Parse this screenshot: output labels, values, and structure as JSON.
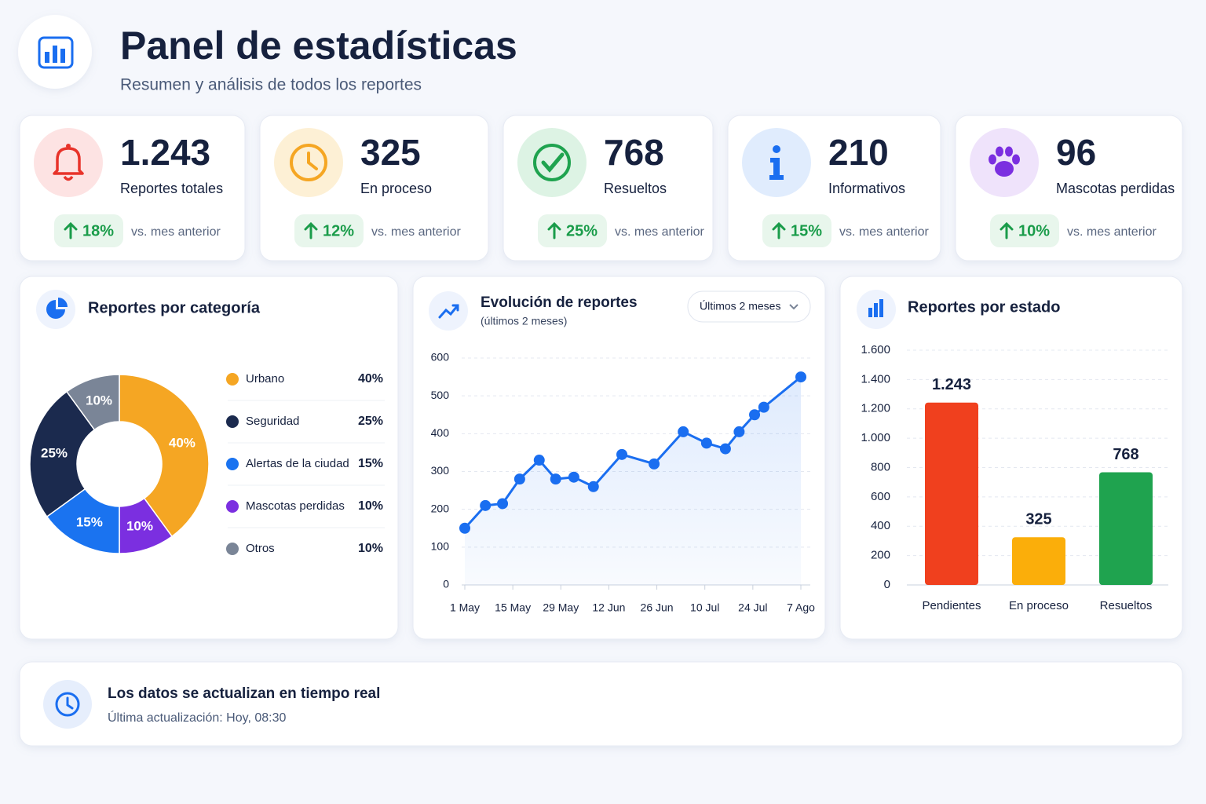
{
  "header": {
    "title": "Panel de estadísticas",
    "subtitle": "Resumen y análisis de todos los reportes"
  },
  "kpis": [
    {
      "value": "1.243",
      "label": "Reportes totales",
      "change": "18%",
      "note": "vs. mes anterior"
    },
    {
      "value": "325",
      "label": "En proceso",
      "change": "12%",
      "note": "vs. mes anterior"
    },
    {
      "value": "768",
      "label": "Resueltos",
      "change": "25%",
      "note": "vs. mes anterior"
    },
    {
      "value": "210",
      "label": "Informativos",
      "change": "15%",
      "note": "vs. mes anterior"
    },
    {
      "value": "96",
      "label": "Mascotas perdidas",
      "change": "10%",
      "note": "vs. mes anterior"
    }
  ],
  "chart_data": [
    {
      "type": "pie",
      "title": "Reportes por categoría",
      "categories": [
        "Urbano",
        "Seguridad",
        "Alertas de la ciudad",
        "Mascotas perdidas",
        "Otros"
      ],
      "values": [
        40,
        25,
        15,
        10,
        10
      ],
      "value_labels": [
        "40%",
        "25%",
        "15%",
        "10%",
        "10%"
      ],
      "colors": [
        "#f5a623",
        "#1b2a4e",
        "#1a73f0",
        "#7b2fe0",
        "#7a8597"
      ]
    },
    {
      "type": "line",
      "title": "Evolución de reportes",
      "subtitle": "(últimos 2 meses)",
      "dropdown": "Últimos 2 meses",
      "color": "#1a6ef0",
      "x": [
        0,
        6,
        11,
        16,
        21.7,
        26.5,
        31.8,
        37.5,
        45.8,
        55.2,
        63.7,
        70.5,
        76,
        80,
        84.5,
        87.2,
        98
      ],
      "values": [
        150,
        210,
        215,
        280,
        330,
        280,
        285,
        260,
        345,
        320,
        405,
        375,
        360,
        405,
        450,
        470,
        550
      ],
      "xlim": [
        0,
        98
      ],
      "xticks": [
        {
          "value": 0,
          "label": "1 May"
        },
        {
          "value": 14,
          "label": "15 May"
        },
        {
          "value": 28,
          "label": "29 May"
        },
        {
          "value": 42,
          "label": "12 Jun"
        },
        {
          "value": 56,
          "label": "26 Jun"
        },
        {
          "value": 70,
          "label": "10 Jul"
        },
        {
          "value": 84,
          "label": "24 Jul"
        },
        {
          "value": 98,
          "label": "7 Ago"
        }
      ],
      "ylim": [
        0,
        600
      ],
      "yticks": [
        0,
        100,
        200,
        300,
        400,
        500,
        600
      ],
      "grid": true
    },
    {
      "type": "bar",
      "title": "Reportes por estado",
      "categories": [
        "Pendientes",
        "En proceso",
        "Resueltos"
      ],
      "values": [
        1243,
        325,
        768
      ],
      "value_labels": [
        "1.243",
        "325",
        "768"
      ],
      "colors": [
        "#f0401e",
        "#fbae0a",
        "#1fa34f"
      ],
      "ylim": [
        0,
        1600
      ],
      "yticks": [
        0,
        {
          "value": 200,
          "label": "200"
        },
        {
          "value": 400,
          "label": "400"
        },
        {
          "value": 600,
          "label": "600"
        },
        {
          "value": 800,
          "label": "800"
        },
        {
          "value": 1000,
          "label": "1.000"
        },
        {
          "value": 1200,
          "label": "1.200"
        },
        {
          "value": 1400,
          "label": "1.400"
        },
        {
          "value": 1600,
          "label": "1.600"
        }
      ],
      "grid": true
    }
  ],
  "footer": {
    "title": "Los datos se actualizan en tiempo real",
    "subtitle": "Última actualización: Hoy, 08:30"
  }
}
